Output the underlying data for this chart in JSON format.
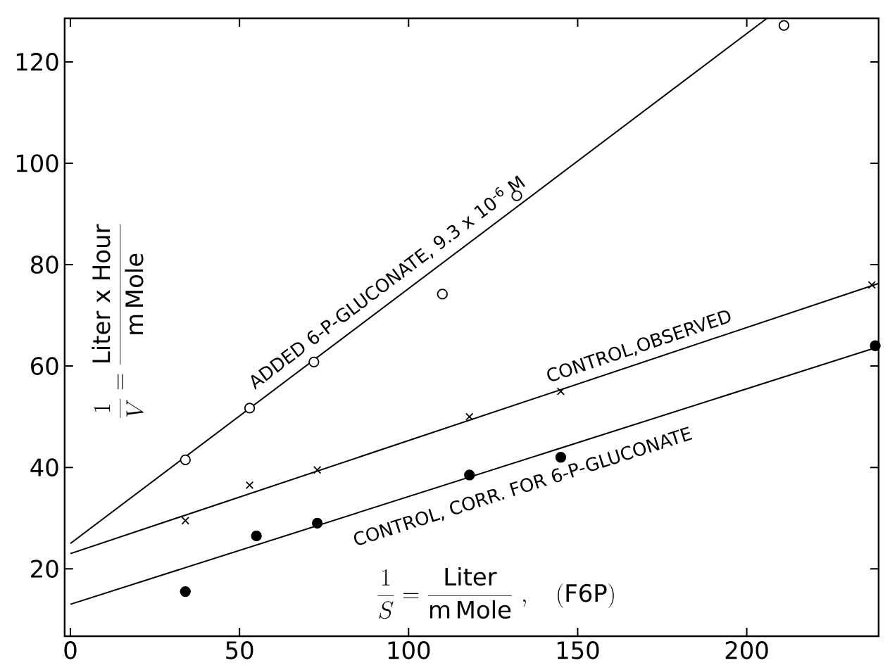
{
  "chart_data": {
    "type": "scatter",
    "xlabel": "\\frac{1}{S}=\\frac{\\mathrm{Liter}}{\\mathrm{m\\,Mole}}\\ ,\\quad (\\mathrm{F6P})",
    "ylabel": "\\frac{1}{V}=\\frac{\\mathrm{Liter\\ x\\ Hour}}{\\mathrm{m\\,Mole}}",
    "xlim": [
      -1.7,
      239
    ],
    "ylim": [
      6.7,
      128.6
    ],
    "xticks": [
      0,
      50,
      100,
      150,
      200
    ],
    "yticks": [
      20,
      40,
      60,
      80,
      100,
      120
    ],
    "grid": false,
    "series": [
      {
        "marker": "circle",
        "color": "#ffffff",
        "x": [
          34,
          53,
          72,
          110,
          132,
          211
        ],
        "values": [
          41.5,
          51.7,
          60.8,
          74.2,
          93.6,
          127.2
        ]
      },
      {
        "marker": "cross",
        "color": "#000000",
        "x": [
          34,
          53,
          73,
          118,
          145,
          237
        ],
        "values": [
          29.5,
          36.5,
          39.5,
          50,
          55,
          76
        ]
      },
      {
        "marker": "circle",
        "color": "#000000",
        "x": [
          34,
          55,
          73,
          118,
          145,
          238
        ],
        "values": [
          15.5,
          26.5,
          29,
          38.5,
          42,
          64
        ]
      },
      {
        "type": "line",
        "marker": "none",
        "color": "#000000",
        "x": [
          0,
          206
        ],
        "values": [
          25,
          128.6
        ]
      },
      {
        "type": "line",
        "marker": "none",
        "color": "#000000",
        "x": [
          0,
          239
        ],
        "values": [
          23,
          76.3
        ]
      },
      {
        "type": "line",
        "marker": "none",
        "color": "#000000",
        "x": [
          0,
          239
        ],
        "values": [
          13,
          63.8
        ]
      }
    ],
    "annotations": [
      "ADDED 6-P-GLUCONATE, 9.3 x 10$^{-6}$ M",
      "CONTROL,OBSERVED",
      "CONTROL, CORR. FOR 6-P-GLUCONATE"
    ]
  }
}
